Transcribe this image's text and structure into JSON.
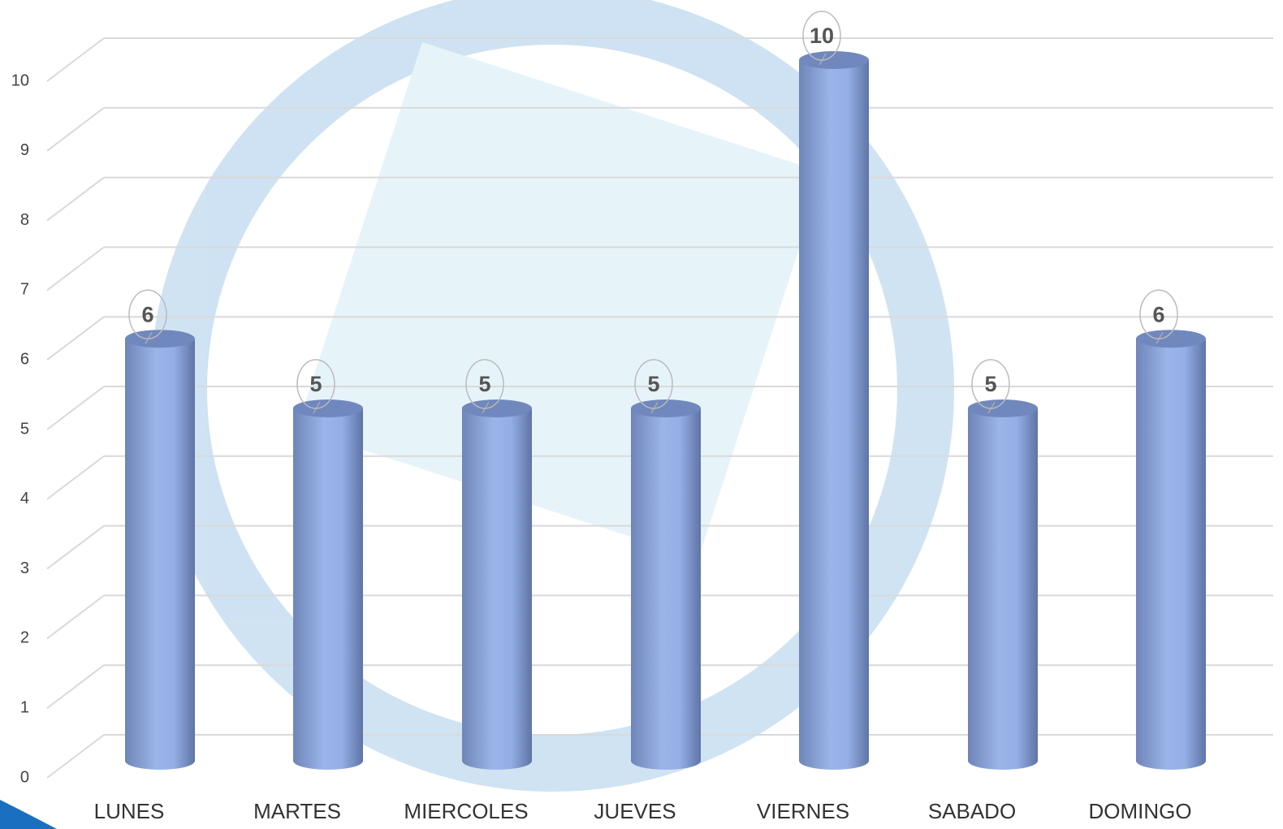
{
  "chart_data": {
    "type": "bar",
    "categories": [
      "LUNES",
      "MARTES",
      "MIERCOLES",
      "JUEVES",
      "VIERNES",
      "SABADO",
      "DOMINGO"
    ],
    "values": [
      6,
      5,
      5,
      5,
      10,
      5,
      6
    ],
    "color": "#8fa9e0",
    "ylim": [
      0,
      10
    ],
    "yticks": [
      0,
      1,
      2,
      3,
      4,
      5,
      6,
      7,
      8,
      9,
      10
    ],
    "grid": true,
    "data_labels": true
  }
}
